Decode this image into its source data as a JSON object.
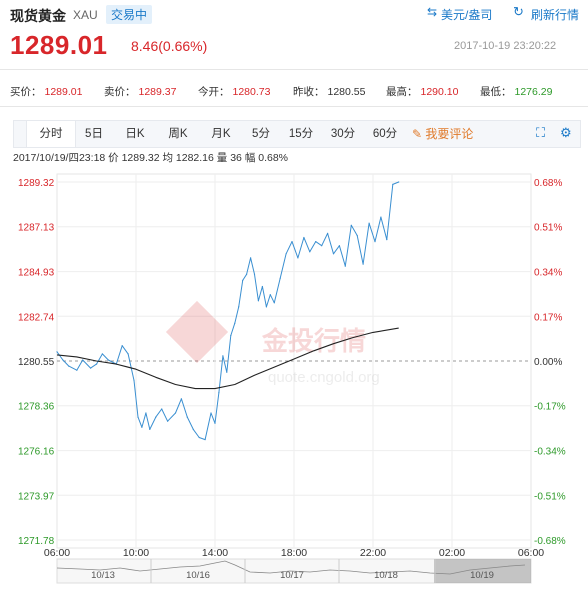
{
  "header": {
    "title": "现货黄金",
    "symbol": "XAU",
    "status_badge": "交易中",
    "exchange_label": "美元/盎司",
    "refresh_label": "刷新行情"
  },
  "quote": {
    "price": "1289.01",
    "change": "8.46(0.66%)",
    "timestamp": "2017-10-19 23:20:22",
    "fields": [
      {
        "label": "买价：",
        "value": "1289.01",
        "color": "red"
      },
      {
        "label": "卖价：",
        "value": "1289.37",
        "color": "red"
      },
      {
        "label": "今开：",
        "value": "1280.73",
        "color": "red"
      },
      {
        "label": "昨收：",
        "value": "1280.55",
        "color": "neutral"
      },
      {
        "label": "最高：",
        "value": "1290.10",
        "color": "red"
      },
      {
        "label": "最低：",
        "value": "1276.29",
        "color": "green"
      }
    ]
  },
  "tabs": [
    "分时",
    "5日",
    "日K",
    "周K",
    "月K",
    "5分",
    "15分",
    "30分",
    "60分"
  ],
  "active_tab": "分时",
  "comment_label": "我要评论",
  "info_bar": {
    "datetime": "2017/10/19/四23:18",
    "price_label": "价",
    "price": "1289.32",
    "avg_label": "均",
    "avg": "1282.16",
    "vol_label": "量",
    "vol": "36",
    "amp_label": "幅",
    "amp": "0.68%"
  },
  "watermark": {
    "text_cn": "金投行情",
    "url": "quote.cngold.org"
  },
  "colors": {
    "up": "#d8262a",
    "down": "#2e9a2a",
    "line": "#3a8fd1",
    "avg": "#222222",
    "accent": "#1a79c8"
  },
  "chart_data": {
    "type": "line",
    "title": "",
    "xlabel": "",
    "ylabel": "",
    "ylim": [
      1271.78,
      1289.32
    ],
    "reference": 1280.55,
    "y_ticks_left": [
      "1289.32",
      "1287.13",
      "1284.93",
      "1282.74",
      "1280.55",
      "1278.36",
      "1276.16",
      "1273.97",
      "1271.78"
    ],
    "y_ticks_right": [
      "0.68%",
      "0.51%",
      "0.34%",
      "0.17%",
      "0.00%",
      "-0.17%",
      "-0.34%",
      "-0.51%",
      "-0.68%"
    ],
    "x_ticks": [
      "06:00",
      "10:00",
      "14:00",
      "18:00",
      "22:00",
      "02:00",
      "06:00"
    ],
    "x_hours": [
      0,
      4,
      8,
      12,
      16,
      20,
      24
    ],
    "grid": true,
    "series": [
      {
        "style": "price",
        "x": [
          0,
          0.3,
          0.6,
          1.0,
          1.3,
          1.7,
          2.0,
          2.3,
          2.6,
          3.0,
          3.3,
          3.6,
          3.9,
          4.1,
          4.3,
          4.5,
          4.7,
          5.0,
          5.3,
          5.6,
          6.0,
          6.3,
          6.6,
          6.9,
          7.2,
          7.5,
          7.8,
          8.0,
          8.2,
          8.4,
          8.6,
          8.8,
          9.0,
          9.2,
          9.4,
          9.6,
          9.8,
          10.0,
          10.2,
          10.4,
          10.6,
          10.8,
          11.0,
          11.3,
          11.6,
          11.9,
          12.2,
          12.5,
          12.8,
          13.1,
          13.4,
          13.7,
          14.0,
          14.3,
          14.6,
          14.9,
          15.2,
          15.5,
          15.8,
          16.1,
          16.4,
          16.7,
          17.0,
          17.3
        ],
        "y": [
          1281.0,
          1280.6,
          1280.3,
          1280.1,
          1280.6,
          1280.2,
          1280.4,
          1280.9,
          1280.6,
          1280.4,
          1281.3,
          1280.9,
          1279.6,
          1277.8,
          1277.3,
          1278.0,
          1277.2,
          1277.8,
          1278.2,
          1277.6,
          1278.0,
          1278.7,
          1277.8,
          1277.2,
          1276.8,
          1276.7,
          1278.0,
          1277.5,
          1279.0,
          1280.8,
          1280.0,
          1281.8,
          1282.4,
          1283.2,
          1284.5,
          1284.8,
          1285.6,
          1284.8,
          1283.5,
          1284.2,
          1283.2,
          1283.8,
          1283.4,
          1284.6,
          1285.8,
          1286.4,
          1285.6,
          1286.6,
          1285.9,
          1286.4,
          1286.2,
          1286.8,
          1285.8,
          1286.2,
          1285.2,
          1287.2,
          1286.7,
          1285.3,
          1287.3,
          1286.4,
          1287.6,
          1286.5,
          1289.2,
          1289.32
        ]
      },
      {
        "style": "average",
        "x": [
          0,
          1,
          2,
          3,
          4,
          5,
          6,
          7,
          8,
          9,
          10,
          11,
          12,
          13,
          14,
          15,
          16,
          17.3
        ],
        "y": [
          1280.85,
          1280.75,
          1280.55,
          1280.4,
          1280.15,
          1279.75,
          1279.4,
          1279.2,
          1279.2,
          1279.4,
          1279.85,
          1280.25,
          1280.65,
          1281.05,
          1281.4,
          1281.7,
          1281.95,
          1282.16
        ]
      }
    ],
    "navigator": {
      "labels": [
        "10/13",
        "10/16",
        "10/17",
        "10/18",
        "10/19"
      ]
    }
  }
}
